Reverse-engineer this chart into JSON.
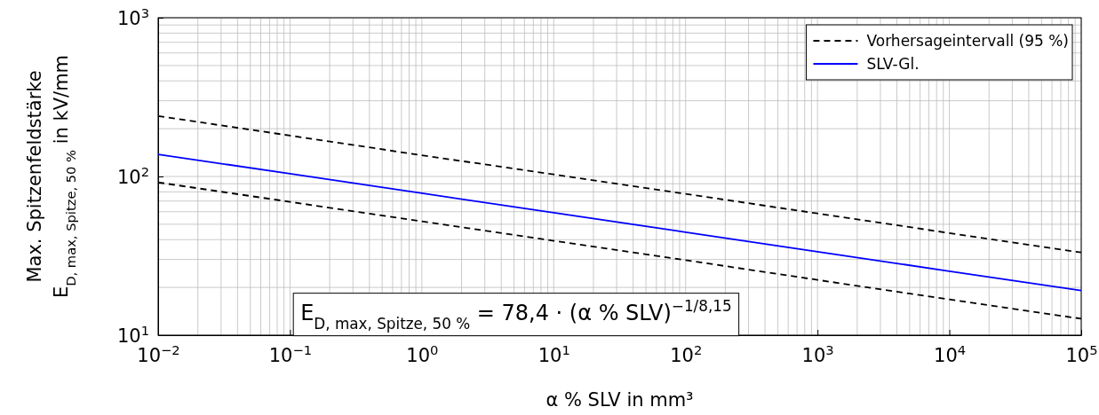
{
  "chart_data": {
    "type": "line",
    "log": "xy",
    "grid": true,
    "legend": "top right",
    "xlabel": "α % SLV in mm³",
    "ylabel": "Max. Spitzenfeldstärke\nE$_{D, max, Spitze, 50 %}$ in kV/mm",
    "xlim": [
      0.01,
      100000
    ],
    "ylim": [
      10,
      1000
    ],
    "xticks": [
      {
        "value": 0.01,
        "label": "10$^{−2}$"
      },
      {
        "value": 0.1,
        "label": "10$^{−1}$"
      },
      {
        "value": 1,
        "label": "10$^{0}$"
      },
      {
        "value": 10,
        "label": "10$^{1}$"
      },
      {
        "value": 100,
        "label": "10$^{2}$"
      },
      {
        "value": 1000,
        "label": "10$^{3}$"
      },
      {
        "value": 10000,
        "label": "10$^{4}$"
      },
      {
        "value": 100000,
        "label": "10$^{5}$"
      }
    ],
    "yticks": [
      {
        "value": 10,
        "label": "10$^{1}$"
      },
      {
        "value": 100,
        "label": "10$^{2}$"
      },
      {
        "value": 1000,
        "label": "10$^{3}$"
      }
    ],
    "x": [
      0.01,
      0.1,
      1,
      10,
      100,
      1000,
      10000,
      100000
    ],
    "series": [
      {
        "name": "Vorhersageintervall (95 %)",
        "color": "#000000",
        "line_style": "dashed",
        "values": [
          240,
          181,
          136,
          103,
          77.6,
          58.5,
          44,
          33.2
        ]
      },
      {
        "name": "SLV-Gl.",
        "color": "#0000ff",
        "line_style": "solid",
        "values": [
          137.9,
          104,
          78.4,
          59.1,
          44.6,
          33.6,
          25.3,
          19.1
        ]
      },
      {
        "color": "#000000",
        "line_style": "dashed",
        "values": [
          91.7,
          69.2,
          52.1,
          39.3,
          29.7,
          22.3,
          16.8,
          12.7
        ]
      }
    ],
    "annotations": [
      "E$_{D, max, Spitze, 50 %}$ = 78,4 · (α % SLV)$^{−1/8,15}$"
    ]
  }
}
